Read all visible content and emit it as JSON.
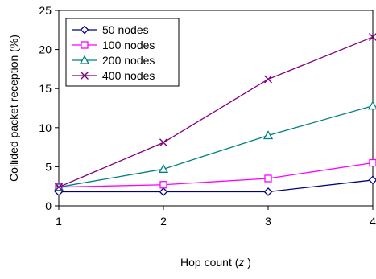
{
  "chart_data": {
    "type": "line",
    "title": "",
    "xlabel": "Hop count (z)",
    "xlabel_parts": {
      "prefix": "Hop count (",
      "variable": "z",
      "suffix": " )"
    },
    "ylabel": "Collided packet reception (%)",
    "xlim": [
      1,
      4
    ],
    "ylim": [
      0,
      25
    ],
    "xticks": [
      "1",
      "2",
      "3",
      "4"
    ],
    "yticks": [
      "0",
      "5",
      "10",
      "15",
      "20",
      "25"
    ],
    "grid": false,
    "legend_placement": "top-left",
    "x": [
      1,
      2,
      3,
      4
    ],
    "series": [
      {
        "name": "50 nodes",
        "values": [
          1.8,
          1.8,
          1.8,
          3.3
        ],
        "color": "#000080",
        "marker": "diamond"
      },
      {
        "name": "100 nodes",
        "values": [
          2.4,
          2.7,
          3.5,
          5.5
        ],
        "color": "#ff00ff",
        "marker": "square"
      },
      {
        "name": "200 nodes",
        "values": [
          2.4,
          4.7,
          9.0,
          12.8
        ],
        "color": "#008080",
        "marker": "triangle"
      },
      {
        "name": "400 nodes",
        "values": [
          2.4,
          8.1,
          16.2,
          21.6
        ],
        "color": "#800080",
        "marker": "x"
      }
    ]
  }
}
